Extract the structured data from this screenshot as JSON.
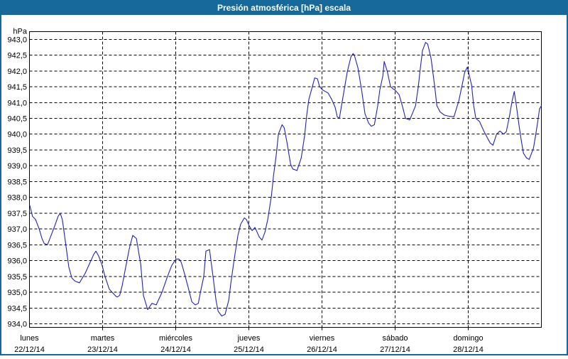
{
  "title": "Presión atmosférica [hPa] escala",
  "colors": {
    "titlebar_bg": "#17699c",
    "window_border": "#17699c",
    "title_text": "#ffffff",
    "line": "#2222bb",
    "grid": "#000000",
    "label_text": "#000000",
    "background": "#ffffff"
  },
  "y_axis": {
    "unit_label": "hPa",
    "tick_labels": [
      "943,0",
      "942,5",
      "942,0",
      "941,5",
      "941,0",
      "940,5",
      "940,0",
      "939,5",
      "939,0",
      "938,5",
      "938,0",
      "937,5",
      "937,0",
      "936,5",
      "936,0",
      "935,5",
      "935,0",
      "934,5",
      "934,0"
    ]
  },
  "x_axis": {
    "days": [
      {
        "name": "lunes",
        "date": "22/12/14"
      },
      {
        "name": "martes",
        "date": "23/12/14"
      },
      {
        "name": "miércoles",
        "date": "24/12/14"
      },
      {
        "name": "jueves",
        "date": "25/12/14"
      },
      {
        "name": "viernes",
        "date": "26/12/14"
      },
      {
        "name": "sábado",
        "date": "27/12/14"
      },
      {
        "name": "domingo",
        "date": "28/12/14"
      }
    ]
  },
  "chart_data": {
    "type": "line",
    "title": "Presión atmosférica [hPa] escala",
    "ylabel": "hPa",
    "ylim": [
      934.0,
      943.0
    ],
    "y_step": 0.5,
    "x_unit": "hours since lunes 22/12/14 00:00",
    "xlim": [
      0,
      168
    ],
    "grid": "dashed",
    "series": [
      {
        "name": "Presión atmosférica",
        "points": [
          [
            0.1,
            937.75
          ],
          [
            1.0,
            937.4
          ],
          [
            2.0,
            937.3
          ],
          [
            3.2,
            937.0
          ],
          [
            4.1,
            936.7
          ],
          [
            4.8,
            936.55
          ],
          [
            5.9,
            936.5
          ],
          [
            7.1,
            936.8
          ],
          [
            8.3,
            937.1
          ],
          [
            9.4,
            937.4
          ],
          [
            10.1,
            937.5
          ],
          [
            10.8,
            937.3
          ],
          [
            11.8,
            936.6
          ],
          [
            12.9,
            935.8
          ],
          [
            13.9,
            935.45
          ],
          [
            15.0,
            935.35
          ],
          [
            16.4,
            935.3
          ],
          [
            18.3,
            935.6
          ],
          [
            19.7,
            935.9
          ],
          [
            21.1,
            936.2
          ],
          [
            21.8,
            936.3
          ],
          [
            22.7,
            936.15
          ],
          [
            23.7,
            935.9
          ],
          [
            24.8,
            935.5
          ],
          [
            26.2,
            935.1
          ],
          [
            27.6,
            934.95
          ],
          [
            28.3,
            934.88
          ],
          [
            28.8,
            934.85
          ],
          [
            29.6,
            934.9
          ],
          [
            30.4,
            935.2
          ],
          [
            31.6,
            935.8
          ],
          [
            32.8,
            936.4
          ],
          [
            33.9,
            936.8
          ],
          [
            35.1,
            936.7
          ],
          [
            36.5,
            935.9
          ],
          [
            37.4,
            934.9
          ],
          [
            38.8,
            934.45
          ],
          [
            40.2,
            934.65
          ],
          [
            41.6,
            934.6
          ],
          [
            43.5,
            935.0
          ],
          [
            45.1,
            935.45
          ],
          [
            46.7,
            935.85
          ],
          [
            48.1,
            936.05
          ],
          [
            49.1,
            936.05
          ],
          [
            49.8,
            935.95
          ],
          [
            50.7,
            935.65
          ],
          [
            52.1,
            935.15
          ],
          [
            53.3,
            934.7
          ],
          [
            54.4,
            934.6
          ],
          [
            55.4,
            934.65
          ],
          [
            56.1,
            935.0
          ],
          [
            57.2,
            935.5
          ],
          [
            57.9,
            936.3
          ],
          [
            59.1,
            936.35
          ],
          [
            60.3,
            935.45
          ],
          [
            61.2,
            934.75
          ],
          [
            61.9,
            934.4
          ],
          [
            63.1,
            934.25
          ],
          [
            64.2,
            934.3
          ],
          [
            65.4,
            934.75
          ],
          [
            66.1,
            935.3
          ],
          [
            67.2,
            936.05
          ],
          [
            68.4,
            936.8
          ],
          [
            69.3,
            937.15
          ],
          [
            70.5,
            937.35
          ],
          [
            71.2,
            937.3
          ],
          [
            72.1,
            937.1
          ],
          [
            73.1,
            936.95
          ],
          [
            74.0,
            937.05
          ],
          [
            75.4,
            936.75
          ],
          [
            76.3,
            936.65
          ],
          [
            77.3,
            936.9
          ],
          [
            78.2,
            937.3
          ],
          [
            79.4,
            938.05
          ],
          [
            80.1,
            938.7
          ],
          [
            81.0,
            939.35
          ],
          [
            81.7,
            940.0
          ],
          [
            82.9,
            940.3
          ],
          [
            83.6,
            940.2
          ],
          [
            84.5,
            939.75
          ],
          [
            85.7,
            939.05
          ],
          [
            86.4,
            938.9
          ],
          [
            87.8,
            938.85
          ],
          [
            89.2,
            939.25
          ],
          [
            90.3,
            939.95
          ],
          [
            91.0,
            940.6
          ],
          [
            91.7,
            941.1
          ],
          [
            92.7,
            941.45
          ],
          [
            93.6,
            941.78
          ],
          [
            94.5,
            941.75
          ],
          [
            95.2,
            941.5
          ],
          [
            96.2,
            941.4
          ],
          [
            97.1,
            941.35
          ],
          [
            98.0,
            941.3
          ],
          [
            99.2,
            941.1
          ],
          [
            100.3,
            940.85
          ],
          [
            101.0,
            940.55
          ],
          [
            101.7,
            940.5
          ],
          [
            103.1,
            941.3
          ],
          [
            104.3,
            941.97
          ],
          [
            105.5,
            942.45
          ],
          [
            106.2,
            942.55
          ],
          [
            106.6,
            942.5
          ],
          [
            107.8,
            942.1
          ],
          [
            109.0,
            941.4
          ],
          [
            110.1,
            940.65
          ],
          [
            111.3,
            940.35
          ],
          [
            112.2,
            940.25
          ],
          [
            113.2,
            940.3
          ],
          [
            114.3,
            940.9
          ],
          [
            115.0,
            941.4
          ],
          [
            116.0,
            941.85
          ],
          [
            116.4,
            942.3
          ],
          [
            117.4,
            942.0
          ],
          [
            118.5,
            941.5
          ],
          [
            119.5,
            941.42
          ],
          [
            119.9,
            941.4
          ],
          [
            121.3,
            941.25
          ],
          [
            122.5,
            940.85
          ],
          [
            123.4,
            940.5
          ],
          [
            124.8,
            940.45
          ],
          [
            126.7,
            940.9
          ],
          [
            127.6,
            941.5
          ],
          [
            128.3,
            942.1
          ],
          [
            129.0,
            942.65
          ],
          [
            130.0,
            942.9
          ],
          [
            130.7,
            942.85
          ],
          [
            131.8,
            942.4
          ],
          [
            133.0,
            941.5
          ],
          [
            133.7,
            940.9
          ],
          [
            134.8,
            940.7
          ],
          [
            136.2,
            940.6
          ],
          [
            137.6,
            940.57
          ],
          [
            139.3,
            940.55
          ],
          [
            140.9,
            941.05
          ],
          [
            142.1,
            941.6
          ],
          [
            142.8,
            941.95
          ],
          [
            143.7,
            942.12
          ],
          [
            145.1,
            941.55
          ],
          [
            145.8,
            940.9
          ],
          [
            146.5,
            940.5
          ],
          [
            147.7,
            940.4
          ],
          [
            149.1,
            940.1
          ],
          [
            150.2,
            939.9
          ],
          [
            151.2,
            939.72
          ],
          [
            152.1,
            939.65
          ],
          [
            153.3,
            940.0
          ],
          [
            154.4,
            940.1
          ],
          [
            155.6,
            940.0
          ],
          [
            156.5,
            940.08
          ],
          [
            157.5,
            940.55
          ],
          [
            158.4,
            941.05
          ],
          [
            159.1,
            941.35
          ],
          [
            159.8,
            940.9
          ],
          [
            160.7,
            940.25
          ],
          [
            161.4,
            939.8
          ],
          [
            162.1,
            939.4
          ],
          [
            163.1,
            939.25
          ],
          [
            164.0,
            939.2
          ],
          [
            165.4,
            939.55
          ],
          [
            166.1,
            939.95
          ],
          [
            166.8,
            940.4
          ],
          [
            167.4,
            940.8
          ],
          [
            168,
            940.9
          ]
        ]
      }
    ]
  }
}
